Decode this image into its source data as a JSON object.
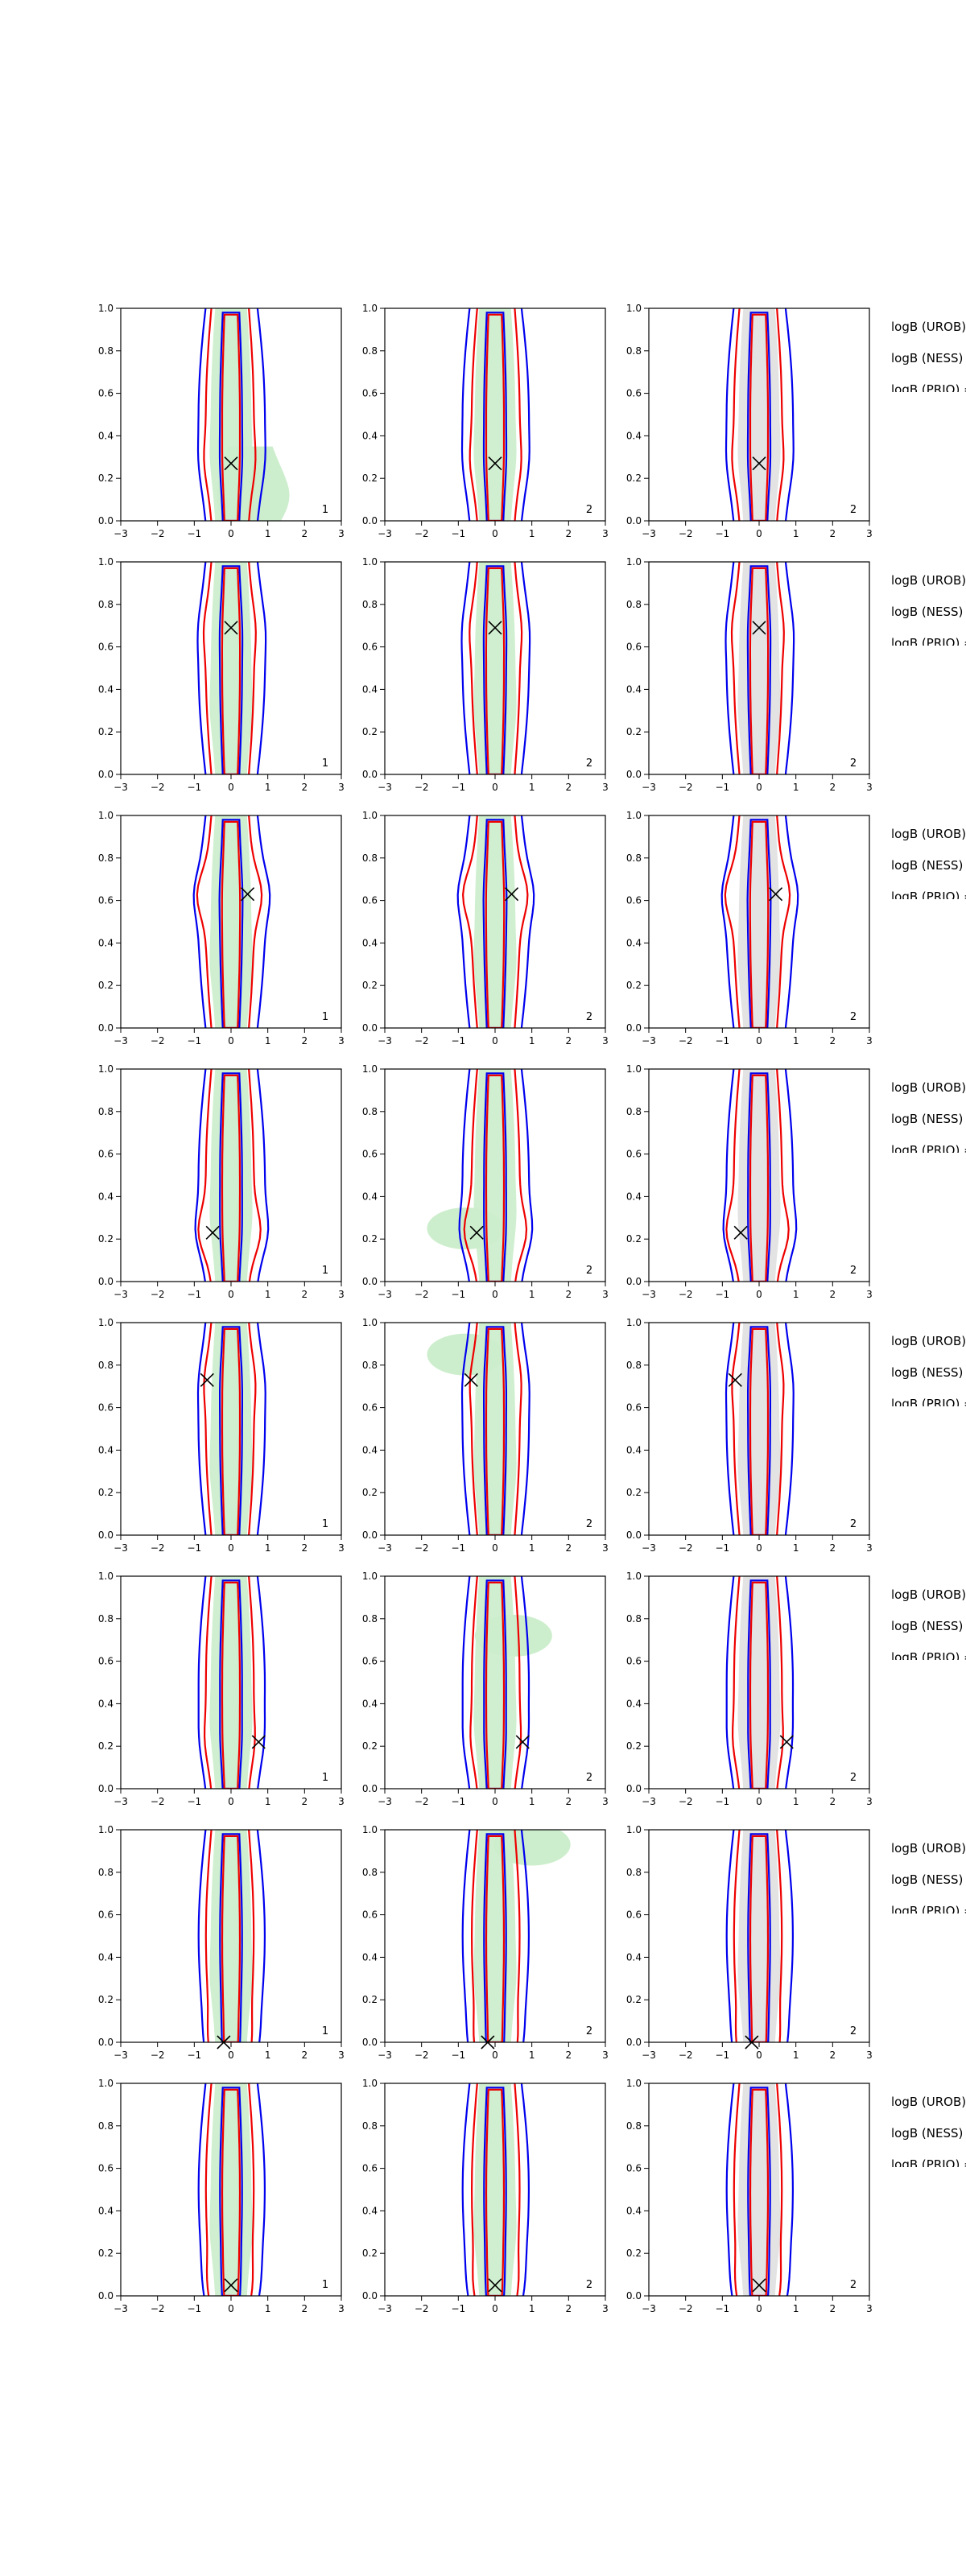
{
  "figure": {
    "colors": {
      "urob": "#0000ee",
      "ness": "#ee0000",
      "prio_fill": "#cdeecd",
      "grey_fill": "#e2e2e2",
      "axis": "#000000"
    },
    "logb_labels": [
      "logB (UROB) =",
      "logB (NESS) =",
      "logB (PRIO) ="
    ]
  },
  "chart_data": {
    "type": "contour",
    "grid": false,
    "xlim": [
      -3,
      3
    ],
    "ylim": [
      0.0,
      1.0
    ],
    "x_ticks": [
      "−3",
      "−2",
      "−1",
      "0",
      "1",
      "2",
      "3"
    ],
    "y_ticks": [
      "0.0",
      "0.2",
      "0.4",
      "0.6",
      "0.8",
      "1.0"
    ],
    "rows": [
      {
        "marker": {
          "x": 0.0,
          "y": 0.27
        },
        "panel_labels": [
          "1",
          "2",
          "2"
        ],
        "extra": "low"
      },
      {
        "marker": {
          "x": 0.0,
          "y": 0.69
        },
        "panel_labels": [
          "1",
          "2",
          "2"
        ],
        "extra": "none"
      },
      {
        "marker": {
          "x": 0.45,
          "y": 0.63
        },
        "panel_labels": [
          "1",
          "2",
          "2"
        ],
        "extra": "mid"
      },
      {
        "marker": {
          "x": -0.5,
          "y": 0.23
        },
        "panel_labels": [
          "1",
          "2",
          "2"
        ],
        "extra": "low-left"
      },
      {
        "marker": {
          "x": -0.65,
          "y": 0.73
        },
        "panel_labels": [
          "1",
          "2",
          "2"
        ],
        "extra": "high-left"
      },
      {
        "marker": {
          "x": 0.75,
          "y": 0.22
        },
        "panel_labels": [
          "1",
          "2",
          "2"
        ],
        "extra": "high-right"
      },
      {
        "marker": {
          "x": -0.2,
          "y": 0.0
        },
        "panel_labels": [
          "1",
          "2",
          "2"
        ],
        "extra": "top"
      },
      {
        "marker": {
          "x": 0.0,
          "y": 0.05
        },
        "panel_labels": [
          "1",
          "2",
          "2"
        ],
        "extra": "none"
      }
    ]
  }
}
